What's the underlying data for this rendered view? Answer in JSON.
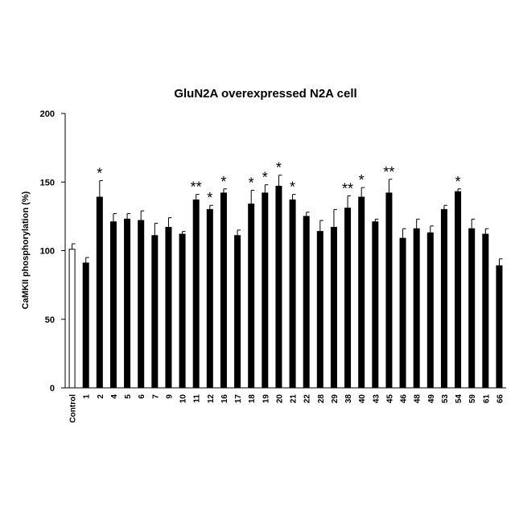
{
  "chart_data": {
    "type": "bar",
    "title": "GluN2A overexpressed N2A cell",
    "xlabel": "",
    "ylabel": "CaMKII phosphorylation (%)",
    "ylim": [
      0,
      200
    ],
    "yticks": [
      0,
      50,
      100,
      150,
      200
    ],
    "grid": false,
    "colors": {
      "control_fill": "#ffffff",
      "bar_fill": "#000000",
      "axis": "#000000"
    },
    "categories": [
      "Control",
      "1",
      "2",
      "4",
      "5",
      "6",
      "7",
      "9",
      "10",
      "11",
      "12",
      "16",
      "17",
      "18",
      "19",
      "20",
      "21",
      "22",
      "28",
      "29",
      "38",
      "40",
      "43",
      "45",
      "46",
      "48",
      "49",
      "53",
      "54",
      "59",
      "61",
      "66"
    ],
    "values": [
      101,
      91,
      139,
      121,
      123,
      122,
      111,
      117,
      112,
      137,
      130,
      142,
      111,
      134,
      142,
      147,
      137,
      125,
      114,
      117,
      131,
      139,
      121,
      142,
      109,
      116,
      113,
      130,
      143,
      116,
      112,
      89
    ],
    "errors": [
      4,
      4,
      12,
      6,
      4,
      7,
      9,
      7,
      2,
      4,
      3,
      3,
      4,
      10,
      6,
      8,
      4,
      3,
      8,
      13,
      9,
      7,
      2,
      10,
      7,
      7,
      5,
      3,
      2,
      7,
      4,
      5
    ],
    "significance": [
      "",
      "",
      "*",
      "",
      "",
      "",
      "",
      "",
      "",
      "**",
      "*",
      "*",
      "",
      "*",
      "*",
      "*",
      "*",
      "",
      "",
      "",
      "**",
      "*",
      "",
      "**",
      "",
      "",
      "",
      "",
      "*",
      "",
      "",
      ""
    ]
  }
}
